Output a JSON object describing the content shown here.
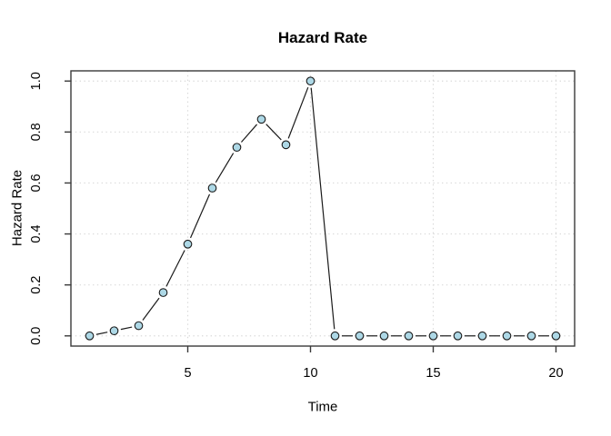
{
  "chart_data": {
    "type": "line",
    "title": "Hazard Rate",
    "xlabel": "Time",
    "ylabel": "Hazard Rate",
    "x": [
      1,
      2,
      3,
      4,
      5,
      6,
      7,
      8,
      9,
      10,
      11,
      12,
      13,
      14,
      15,
      16,
      17,
      18,
      19,
      20
    ],
    "y": [
      0.0,
      0.02,
      0.04,
      0.17,
      0.36,
      0.58,
      0.74,
      0.85,
      0.75,
      1.0,
      0.0,
      0.0,
      0.0,
      0.0,
      0.0,
      0.0,
      0.0,
      0.0,
      0.0,
      0.0
    ],
    "xticks": [
      5,
      10,
      15,
      20
    ],
    "xtick_labels": [
      "5",
      "10",
      "15",
      "20"
    ],
    "yticks": [
      0.0,
      0.2,
      0.4,
      0.6,
      0.8,
      1.0
    ],
    "ytick_labels": [
      "0.0",
      "0.2",
      "0.4",
      "0.6",
      "0.8",
      "1.0"
    ],
    "xlim": [
      0.24,
      20.76
    ],
    "ylim": [
      -0.04,
      1.04
    ],
    "grid": true,
    "legend": "none",
    "style": {
      "line_color": "#1a1a1a",
      "marker": "circle",
      "marker_fill": "#ADD8E6",
      "marker_stroke": "#1a1a1a",
      "grid_color": "#d9d9d9",
      "axis_color": "#3a3a3a",
      "background": "#ffffff"
    }
  }
}
